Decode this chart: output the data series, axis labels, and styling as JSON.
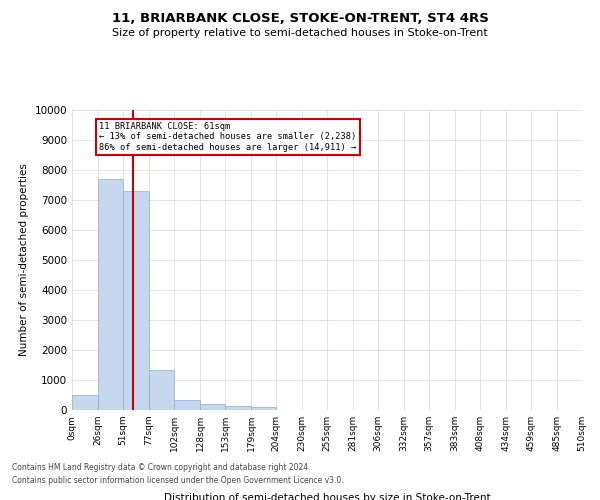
{
  "title": "11, BRIARBANK CLOSE, STOKE-ON-TRENT, ST4 4RS",
  "subtitle": "Size of property relative to semi-detached houses in Stoke-on-Trent",
  "xlabel": "Distribution of semi-detached houses by size in Stoke-on-Trent",
  "ylabel": "Number of semi-detached properties",
  "bin_edges": [
    0,
    26,
    51,
    77,
    102,
    128,
    153,
    179,
    204,
    230,
    255,
    281,
    306,
    332,
    357,
    383,
    408,
    434,
    459,
    485,
    510
  ],
  "bar_heights": [
    500,
    7700,
    7300,
    1350,
    350,
    200,
    150,
    100,
    0,
    0,
    0,
    0,
    0,
    0,
    0,
    0,
    0,
    0,
    0,
    0
  ],
  "bar_color": "#c5d8ed",
  "bar_edgecolor": "#8ab0d0",
  "property_size": 61,
  "redline_color": "#cc0000",
  "annotation_text_line1": "11 BRIARBANK CLOSE: 61sqm",
  "annotation_text_line2": "← 13% of semi-detached houses are smaller (2,238)",
  "annotation_text_line3": "86% of semi-detached houses are larger (14,911) →",
  "annotation_box_color": "#cc0000",
  "ylim": [
    0,
    10000
  ],
  "yticks": [
    0,
    1000,
    2000,
    3000,
    4000,
    5000,
    6000,
    7000,
    8000,
    9000,
    10000
  ],
  "footer_line1": "Contains HM Land Registry data © Crown copyright and database right 2024.",
  "footer_line2": "Contains public sector information licensed under the Open Government Licence v3.0.",
  "bg_color": "#ffffff",
  "grid_color": "#d0d8e8"
}
